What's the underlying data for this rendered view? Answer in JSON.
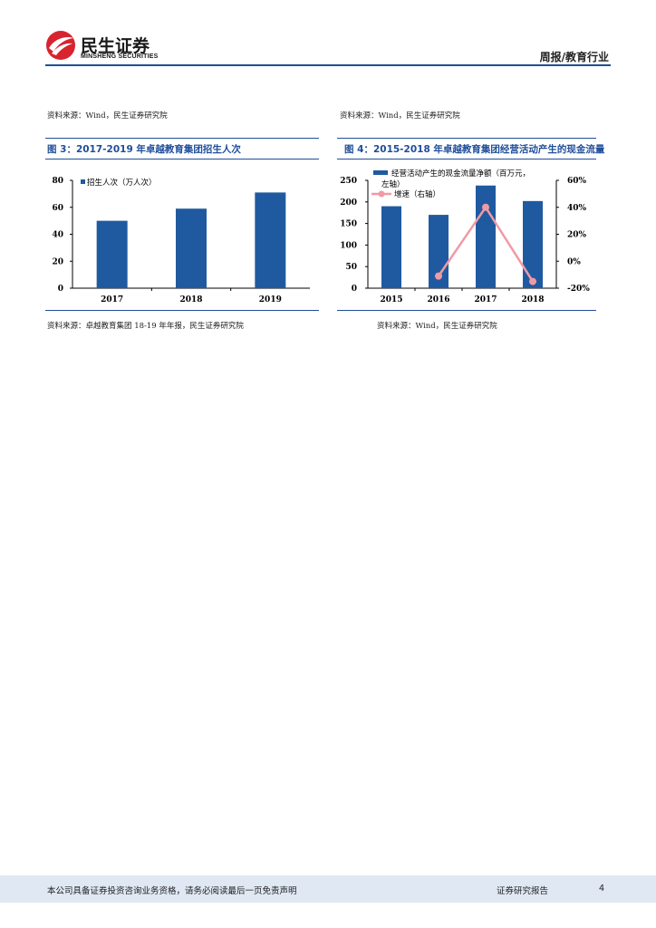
{
  "header": {
    "brand_cn": "民生证券",
    "brand_en": "MINSHENG SECURITIES",
    "report_type": "周报/教育行业"
  },
  "top_sources": {
    "left": "资料来源：Wind，民生证券研究院",
    "right": "资料来源：Wind，民生证券研究院"
  },
  "figure3": {
    "title": "图 3：2017-2019 年卓越教育集团招生人次",
    "source": "资料来源：卓越教育集团 18-19 年年报，民生证券研究院",
    "chart_data": {
      "type": "bar",
      "categories": [
        "2017",
        "2018",
        "2019"
      ],
      "series": [
        {
          "name": "招生人次（万人次）",
          "values": [
            50,
            59,
            71
          ]
        }
      ],
      "ylim": [
        0,
        80
      ],
      "yticks": [
        "0",
        "20",
        "40",
        "60",
        "80"
      ],
      "legend_position": "top-left",
      "colors": {
        "bar": "#1f5aa0"
      }
    }
  },
  "figure4": {
    "title": "图 4：2015-2018 年卓越教育集团经营活动产生的现金流量",
    "source": "资料来源：Wind，民生证券研究院",
    "chart_data": {
      "type": "bar+line",
      "categories": [
        "2015",
        "2016",
        "2017",
        "2018"
      ],
      "series": [
        {
          "name": "经营活动产生的现金流量净额（百万元，左轴）",
          "type": "bar",
          "axis": "left",
          "values": [
            190,
            170,
            238,
            202
          ]
        },
        {
          "name": "增速（右轴）",
          "type": "line",
          "axis": "right",
          "values": [
            null,
            -11,
            40,
            -15
          ]
        }
      ],
      "ylim_left": [
        0,
        250
      ],
      "ylim_right": [
        -20,
        60
      ],
      "yticks_left": [
        "0",
        "50",
        "100",
        "150",
        "200",
        "250"
      ],
      "yticks_right": [
        "-20%",
        "0%",
        "20%",
        "40%",
        "60%"
      ],
      "legend_position": "top",
      "colors": {
        "bar": "#1f5aa0",
        "line": "#f19aa5"
      }
    }
  },
  "footer": {
    "disclaimer": "本公司具备证券投资咨询业务资格，请务必阅读最后一页免责声明",
    "doc_type": "证券研究报告",
    "page_number": "4"
  }
}
